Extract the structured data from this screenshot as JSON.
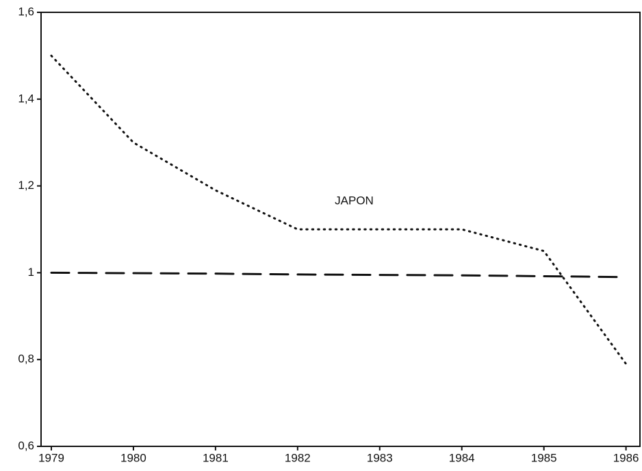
{
  "chart_data": {
    "type": "line",
    "x": [
      1979,
      1980,
      1981,
      1982,
      1983,
      1984,
      1985,
      1986
    ],
    "series": [
      {
        "name": "JAPON",
        "color": "#111111",
        "style": "dotted",
        "values": [
          1.5,
          1.3,
          1.19,
          1.1,
          1.1,
          1.1,
          1.05,
          0.79
        ]
      },
      {
        "color": "#111111",
        "style": "dashed",
        "values": [
          1,
          0.999,
          0.998,
          0.996,
          0.995,
          0.994,
          0.992,
          0.99
        ]
      }
    ],
    "xlim": [
      1978.875,
      1986.17
    ],
    "xticks": [
      1979,
      1980,
      1981,
      1982,
      1983,
      1984,
      1985,
      1986
    ],
    "ylim": [
      0.6,
      1.6
    ],
    "yticks": [
      {
        "value": 0.6,
        "label": "0,6"
      },
      {
        "value": 0.8,
        "label": "0,8"
      },
      1,
      {
        "value": 1.2,
        "label": "1,2"
      },
      {
        "value": 1.4,
        "label": "1,4"
      },
      {
        "value": 1.6,
        "label": "1,6"
      }
    ],
    "grid": false
  }
}
